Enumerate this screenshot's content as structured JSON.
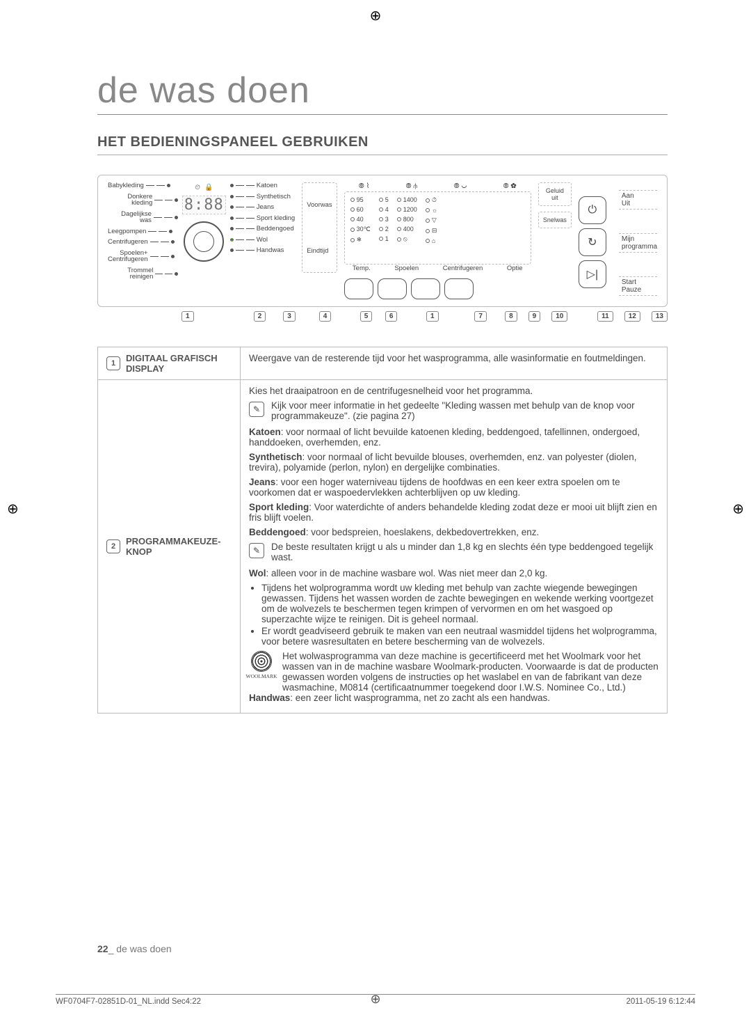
{
  "page": {
    "title": "de was doen",
    "subtitle": "HET BEDIENINGSPANEEL GEBRUIKEN",
    "page_number": "22",
    "page_label": "de was doen",
    "print_file": "WF0704F7-02851D-01_NL.indd   Sec4:22",
    "print_date": "2011-05-19   6:12:44"
  },
  "panel": {
    "programs_left": [
      "Babykleding",
      "Donkere kleding",
      "Dagelijkse was",
      "Leegpompen",
      "Centrifugeren",
      "Spoelen+\nCentrifugeren",
      "Trommel reinigen"
    ],
    "programs_right": [
      "Katoen",
      "Synthetisch",
      "Jeans",
      "Sport kleding",
      "Beddengoed",
      "Wol",
      "Handwas"
    ],
    "green_index": 5,
    "digital": "8:88",
    "voorwas": "Voorwas",
    "eindtijd": "Eindtijd",
    "opt_headers": [
      "Temp.",
      "Spoelen",
      "Centrifugeren",
      "Optie"
    ],
    "temp_col": [
      "95",
      "60",
      "40",
      "30℃",
      "❄"
    ],
    "spoel_col": [
      "5",
      "4",
      "3",
      "2",
      "1"
    ],
    "centrif_col": [
      "1400",
      "1200",
      "800",
      "400",
      "⦸"
    ],
    "optie_col": [
      "⏱",
      "☼",
      "▽",
      "⊟",
      "⌂"
    ],
    "geluid": "Geluid\nuit",
    "snelwas": "Snelwas",
    "right_labels": {
      "aan": "Aan",
      "uit": "Uit",
      "mijn": "Mijn\nprogramma",
      "start": "Start",
      "pauze": "Pauze"
    }
  },
  "callouts": [
    "1",
    "2",
    "3",
    "4",
    "5",
    "6",
    "1",
    "7",
    "8",
    "9",
    "10",
    "11",
    "12",
    "13"
  ],
  "table": {
    "row1": {
      "num": "1",
      "label": "DIGITAAL GRAFISCH DISPLAY",
      "text": "Weergave van de resterende tijd voor het wasprogramma, alle wasinformatie en foutmeldingen."
    },
    "row2": {
      "num": "2",
      "label": "PROGRAMMAKEUZE-KNOP",
      "intro": "Kies het draaipatroon en de centrifugesnelheid voor het programma.",
      "info1": "Kijk voor meer informatie in het gedeelte \"Kleding wassen met behulp van de knop voor programmakeuze\". (zie pagina 27)",
      "katoen_hd": "Katoen",
      "katoen": ": voor normaal of licht bevuilde katoenen kleding, beddengoed, tafellinnen, ondergoed, handdoeken, overhemden, enz.",
      "synth_hd": "Synthetisch",
      "synth": ": voor normaal of licht bevuilde blouses, overhemden, enz. van polyester (diolen, trevira), polyamide (perlon, nylon) en dergelijke combinaties.",
      "jeans_hd": "Jeans",
      "jeans": ": voor een hoger waterniveau tijdens de hoofdwas en een keer extra spoelen om te voorkomen dat er waspoedervlekken achterblijven op uw kleding.",
      "sport_hd": "Sport kleding",
      "sport": ": Voor waterdichte of anders behandelde kleding zodat deze er mooi uit blijft zien en fris blijft voelen.",
      "bed_hd": "Beddengoed",
      "bed": ": voor bedspreien, hoeslakens, dekbedovertrekken, enz.",
      "info2": "De beste resultaten krijgt u als u minder dan 1,8 kg en slechts één type beddengoed tegelijk wast.",
      "wol_hd": "Wol",
      "wol_intro": ": alleen voor in de machine wasbare wol. Was niet meer dan 2,0 kg.",
      "wol_li1": "Tijdens het wolprogramma wordt uw kleding met behulp van zachte wiegende bewegingen gewassen. Tijdens het wassen worden de zachte bewegingen en wekende werking voortgezet om de wolvezels te beschermen tegen krimpen of vervormen en om het wasgoed op superzachte wijze te reinigen. Dit is geheel normaal.",
      "wol_li2": "Er wordt geadviseerd gebruik te maken van een neutraal wasmiddel tijdens het wolprogramma, voor betere wasresultaten en betere bescherming van de wolvezels.",
      "woolmark_label": "WOOLMARK",
      "woolmark_text": "Het wolwasprogramma van deze machine is gecertificeerd met het Woolmark voor het wassen van in de machine wasbare Woolmark-producten. Voorwaarde is dat de producten gewassen worden volgens de instructies op het waslabel en van de fabrikant van deze wasmachine, M0814 (certificaatnummer toegekend door I.W.S. Nominee Co., Ltd.)",
      "handwas_hd": "Handwas",
      "handwas": ": een zeer licht wasprogramma, net zo zacht als een handwas."
    }
  }
}
